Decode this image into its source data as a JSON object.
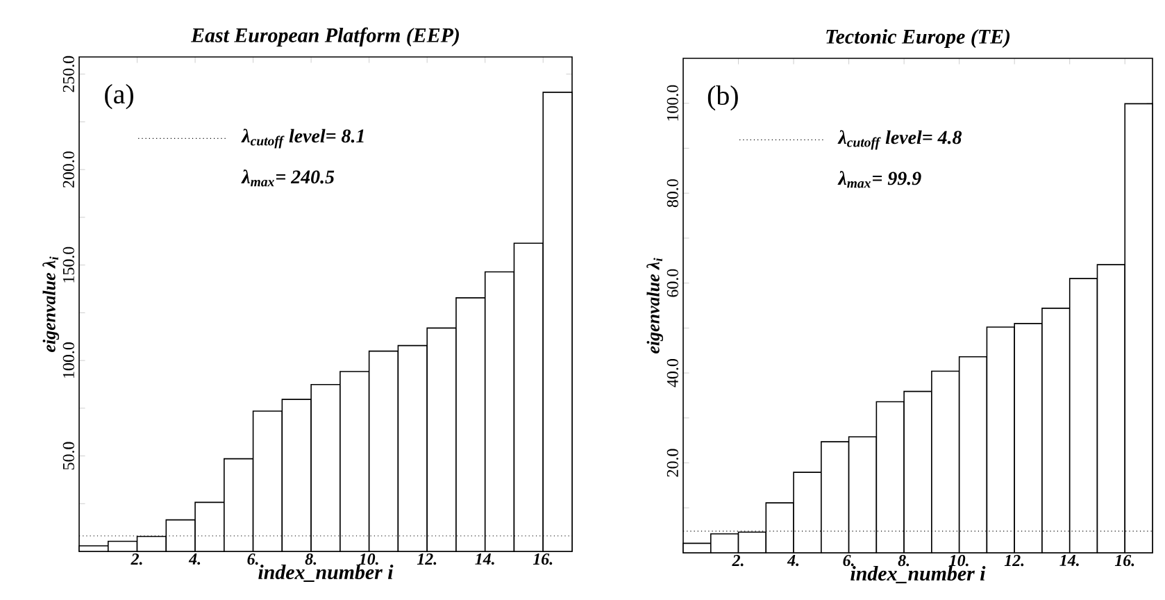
{
  "chart_data": [
    {
      "type": "histogram",
      "title": "East European Platform (EEP)",
      "xlabel": "index_number i",
      "ylabel": "eigenvalue λ$_{i}$",
      "bins": [
        0,
        1,
        2,
        3,
        4,
        5,
        6,
        7,
        8,
        9,
        10,
        11,
        12,
        13,
        14,
        15,
        16,
        17
      ],
      "values": [
        2.9,
        5.3,
        7.8,
        16.5,
        25.7,
        48.5,
        73.5,
        79.6,
        87.4,
        94.2,
        104.9,
        107.8,
        117,
        132.8,
        146.4,
        161.4,
        240.5
      ],
      "xlim": [
        0,
        17
      ],
      "ylim": [
        0,
        259
      ],
      "xticks": [
        {
          "value": 2,
          "label": "2."
        },
        {
          "value": 4,
          "label": "4."
        },
        {
          "value": 6,
          "label": "6."
        },
        {
          "value": 8,
          "label": "8."
        },
        {
          "value": 10,
          "label": "10."
        },
        {
          "value": 12,
          "label": "12."
        },
        {
          "value": 14,
          "label": "14."
        },
        {
          "value": 16,
          "label": "16."
        }
      ],
      "yticks": [
        {
          "value": 25,
          "label": null
        },
        {
          "value": 50,
          "label": "50.0"
        },
        {
          "value": 75,
          "label": null
        },
        {
          "value": 100,
          "label": "100.0"
        },
        {
          "value": 125,
          "label": null
        },
        {
          "value": 150,
          "label": "150.0"
        },
        {
          "value": 175,
          "label": null
        },
        {
          "value": 200,
          "label": "200.0"
        },
        {
          "value": 225,
          "label": null
        },
        {
          "value": 250,
          "label": "250.0"
        }
      ],
      "ref_lines": [
        {
          "axis": "y",
          "value": 8.1,
          "label": "λ$_{cutoff}$ level= 8.1",
          "line_style": "dotted"
        }
      ],
      "annotations": [
        "(a)",
        "λ$_{max}$= 240.5"
      ]
    },
    {
      "type": "histogram",
      "title": "Tectonic Europe (TE)",
      "xlabel": "index_number i",
      "ylabel": "eigenvalue λ$_{i}$",
      "bins": [
        0,
        1,
        2,
        3,
        4,
        5,
        6,
        7,
        8,
        9,
        10,
        11,
        12,
        13,
        14,
        15,
        16,
        17
      ],
      "values": [
        2.1,
        4.2,
        4.6,
        11.1,
        17.9,
        24.7,
        25.8,
        33.6,
        35.9,
        40.4,
        43.6,
        50.2,
        51.0,
        54.4,
        61.0,
        64.1,
        99.9
      ],
      "xlim": [
        0,
        17
      ],
      "ylim": [
        0,
        110
      ],
      "xticks": [
        {
          "value": 2,
          "label": "2."
        },
        {
          "value": 4,
          "label": "4."
        },
        {
          "value": 6,
          "label": "6."
        },
        {
          "value": 8,
          "label": "8."
        },
        {
          "value": 10,
          "label": "10."
        },
        {
          "value": 12,
          "label": "12."
        },
        {
          "value": 14,
          "label": "14."
        },
        {
          "value": 16,
          "label": "16."
        }
      ],
      "yticks": [
        {
          "value": 10,
          "label": null
        },
        {
          "value": 20,
          "label": "20.0"
        },
        {
          "value": 30,
          "label": null
        },
        {
          "value": 40,
          "label": "40.0"
        },
        {
          "value": 50,
          "label": null
        },
        {
          "value": 60,
          "label": "60.0"
        },
        {
          "value": 70,
          "label": null
        },
        {
          "value": 80,
          "label": "80.0"
        },
        {
          "value": 90,
          "label": null
        },
        {
          "value": 100,
          "label": "100.0"
        }
      ],
      "ref_lines": [
        {
          "axis": "y",
          "value": 4.8,
          "label": "λ$_{cutoff}$ level= 4.8",
          "line_style": "dotted"
        }
      ],
      "annotations": [
        "(b)",
        "λ$_{max}$= 99.9"
      ]
    }
  ]
}
